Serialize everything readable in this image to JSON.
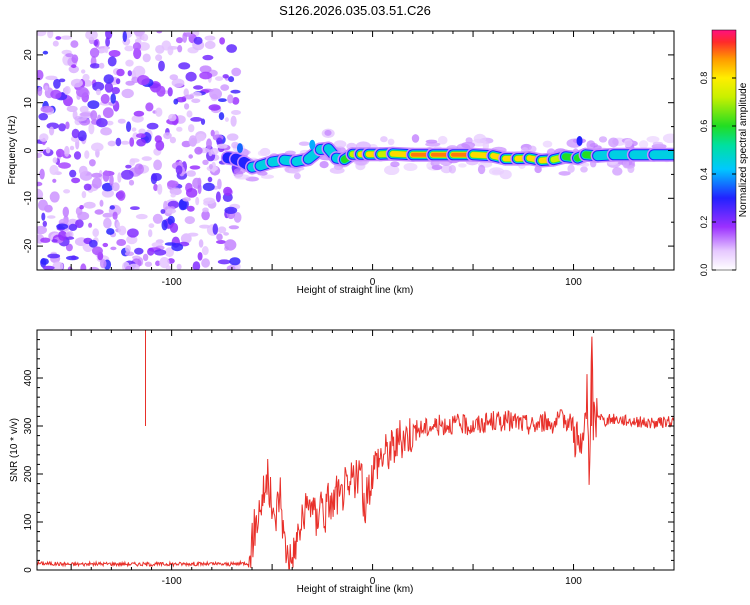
{
  "figure_title": "S126.2026.035.03.51.C26",
  "chart_data": [
    {
      "type": "heatmap",
      "id": "spectrogram",
      "xlabel": "Height of straight line (km)",
      "ylabel": "Frequency (Hz)",
      "xlim": [
        -167,
        150
      ],
      "ylim": [
        -25,
        25
      ],
      "xticks": [
        -100,
        0,
        100
      ],
      "xtick_labels": [
        "-100",
        "0",
        "100"
      ],
      "yticks": [
        -20,
        -10,
        0,
        10,
        20
      ],
      "ytick_labels": [
        "-20",
        "-10",
        "0",
        "10",
        "20"
      ],
      "noise_region_x": [
        -167,
        -67
      ],
      "signal_track": {
        "x": [
          -72,
          -68,
          -64,
          -60,
          -56,
          -50,
          -44,
          -38,
          -32,
          -26,
          -22,
          -18,
          -14,
          -10,
          -6,
          -2,
          4,
          10,
          20,
          30,
          40,
          50,
          60,
          66,
          72,
          78,
          84,
          90,
          96,
          102,
          106,
          112,
          120,
          130,
          140,
          150
        ],
        "freq": [
          -1.5,
          -1.8,
          -2.5,
          -3.5,
          -3.2,
          -2.4,
          -2.0,
          -2.3,
          -1.8,
          0.2,
          0.4,
          -1.6,
          -1.9,
          -0.8,
          -0.8,
          -0.8,
          -0.8,
          -0.7,
          -0.9,
          -0.9,
          -0.9,
          -0.9,
          -1.1,
          -1.7,
          -1.7,
          -1.6,
          -2.1,
          -1.9,
          -1.3,
          -1.6,
          -0.9,
          -1.1,
          -0.9,
          -0.9,
          -0.9,
          -0.9
        ],
        "amp": [
          0.25,
          0.35,
          0.35,
          0.45,
          0.45,
          0.45,
          0.45,
          0.45,
          0.5,
          0.5,
          0.45,
          0.55,
          0.55,
          0.75,
          0.8,
          0.85,
          0.8,
          0.8,
          0.95,
          0.95,
          0.95,
          0.95,
          0.85,
          0.85,
          0.9,
          0.85,
          0.8,
          0.85,
          0.7,
          0.65,
          0.7,
          0.6,
          0.55,
          0.55,
          0.55,
          0.5
        ]
      },
      "colorbar": {
        "label": "Normalized spectral amplitude",
        "range": [
          0,
          1
        ],
        "ticks": [
          0.0,
          0.2,
          0.4,
          0.6,
          0.8
        ],
        "tick_labels": [
          "0.0",
          "0.2",
          "0.4",
          "0.6",
          "0.8"
        ],
        "colormap": "rainbow"
      }
    },
    {
      "type": "line",
      "id": "snr",
      "xlabel": "Height of straight line (km)",
      "ylabel": "SNR (10 * v/v)",
      "xlim": [
        -167,
        150
      ],
      "ylim": [
        0,
        500
      ],
      "xticks": [
        -100,
        0,
        100
      ],
      "xtick_labels": [
        "-100",
        "0",
        "100"
      ],
      "yticks": [
        0,
        100,
        200,
        300,
        400
      ],
      "ytick_labels": [
        "0",
        "100",
        "200",
        "300",
        "400"
      ],
      "line_color": "#e8302a",
      "series": [
        {
          "name": "SNR",
          "x": [
            -167,
            -150,
            -130,
            -110,
            -90,
            -70,
            -62,
            -59,
            -55,
            -52,
            -49,
            -46,
            -44,
            -42,
            -40,
            -38,
            -35,
            -32,
            -30,
            -28,
            -26,
            -24,
            -22,
            -20,
            -18,
            -16,
            -14,
            -12,
            -10,
            -8,
            -6,
            -4,
            -2,
            0,
            2,
            5,
            10,
            15,
            20,
            25,
            30,
            40,
            50,
            60,
            70,
            80,
            85,
            90,
            95,
            100,
            102,
            104,
            106,
            107,
            108,
            109,
            110,
            112,
            115,
            120,
            130,
            140,
            150
          ],
          "y": [
            14,
            12,
            13,
            12,
            13,
            12,
            15,
            80,
            150,
            190,
            90,
            170,
            60,
            30,
            20,
            60,
            100,
            130,
            150,
            90,
            160,
            110,
            150,
            130,
            165,
            140,
            180,
            150,
            200,
            185,
            210,
            120,
            170,
            210,
            230,
            240,
            255,
            275,
            290,
            295,
            300,
            305,
            300,
            310,
            310,
            300,
            310,
            305,
            315,
            305,
            270,
            230,
            330,
            360,
            160,
            460,
            300,
            330,
            310,
            315,
            310,
            305,
            310
          ]
        }
      ],
      "annotations": [
        {
          "x": -113,
          "y": 505,
          "value": 505
        },
        {
          "x": 109,
          "y": 460,
          "value": 460
        }
      ]
    }
  ]
}
